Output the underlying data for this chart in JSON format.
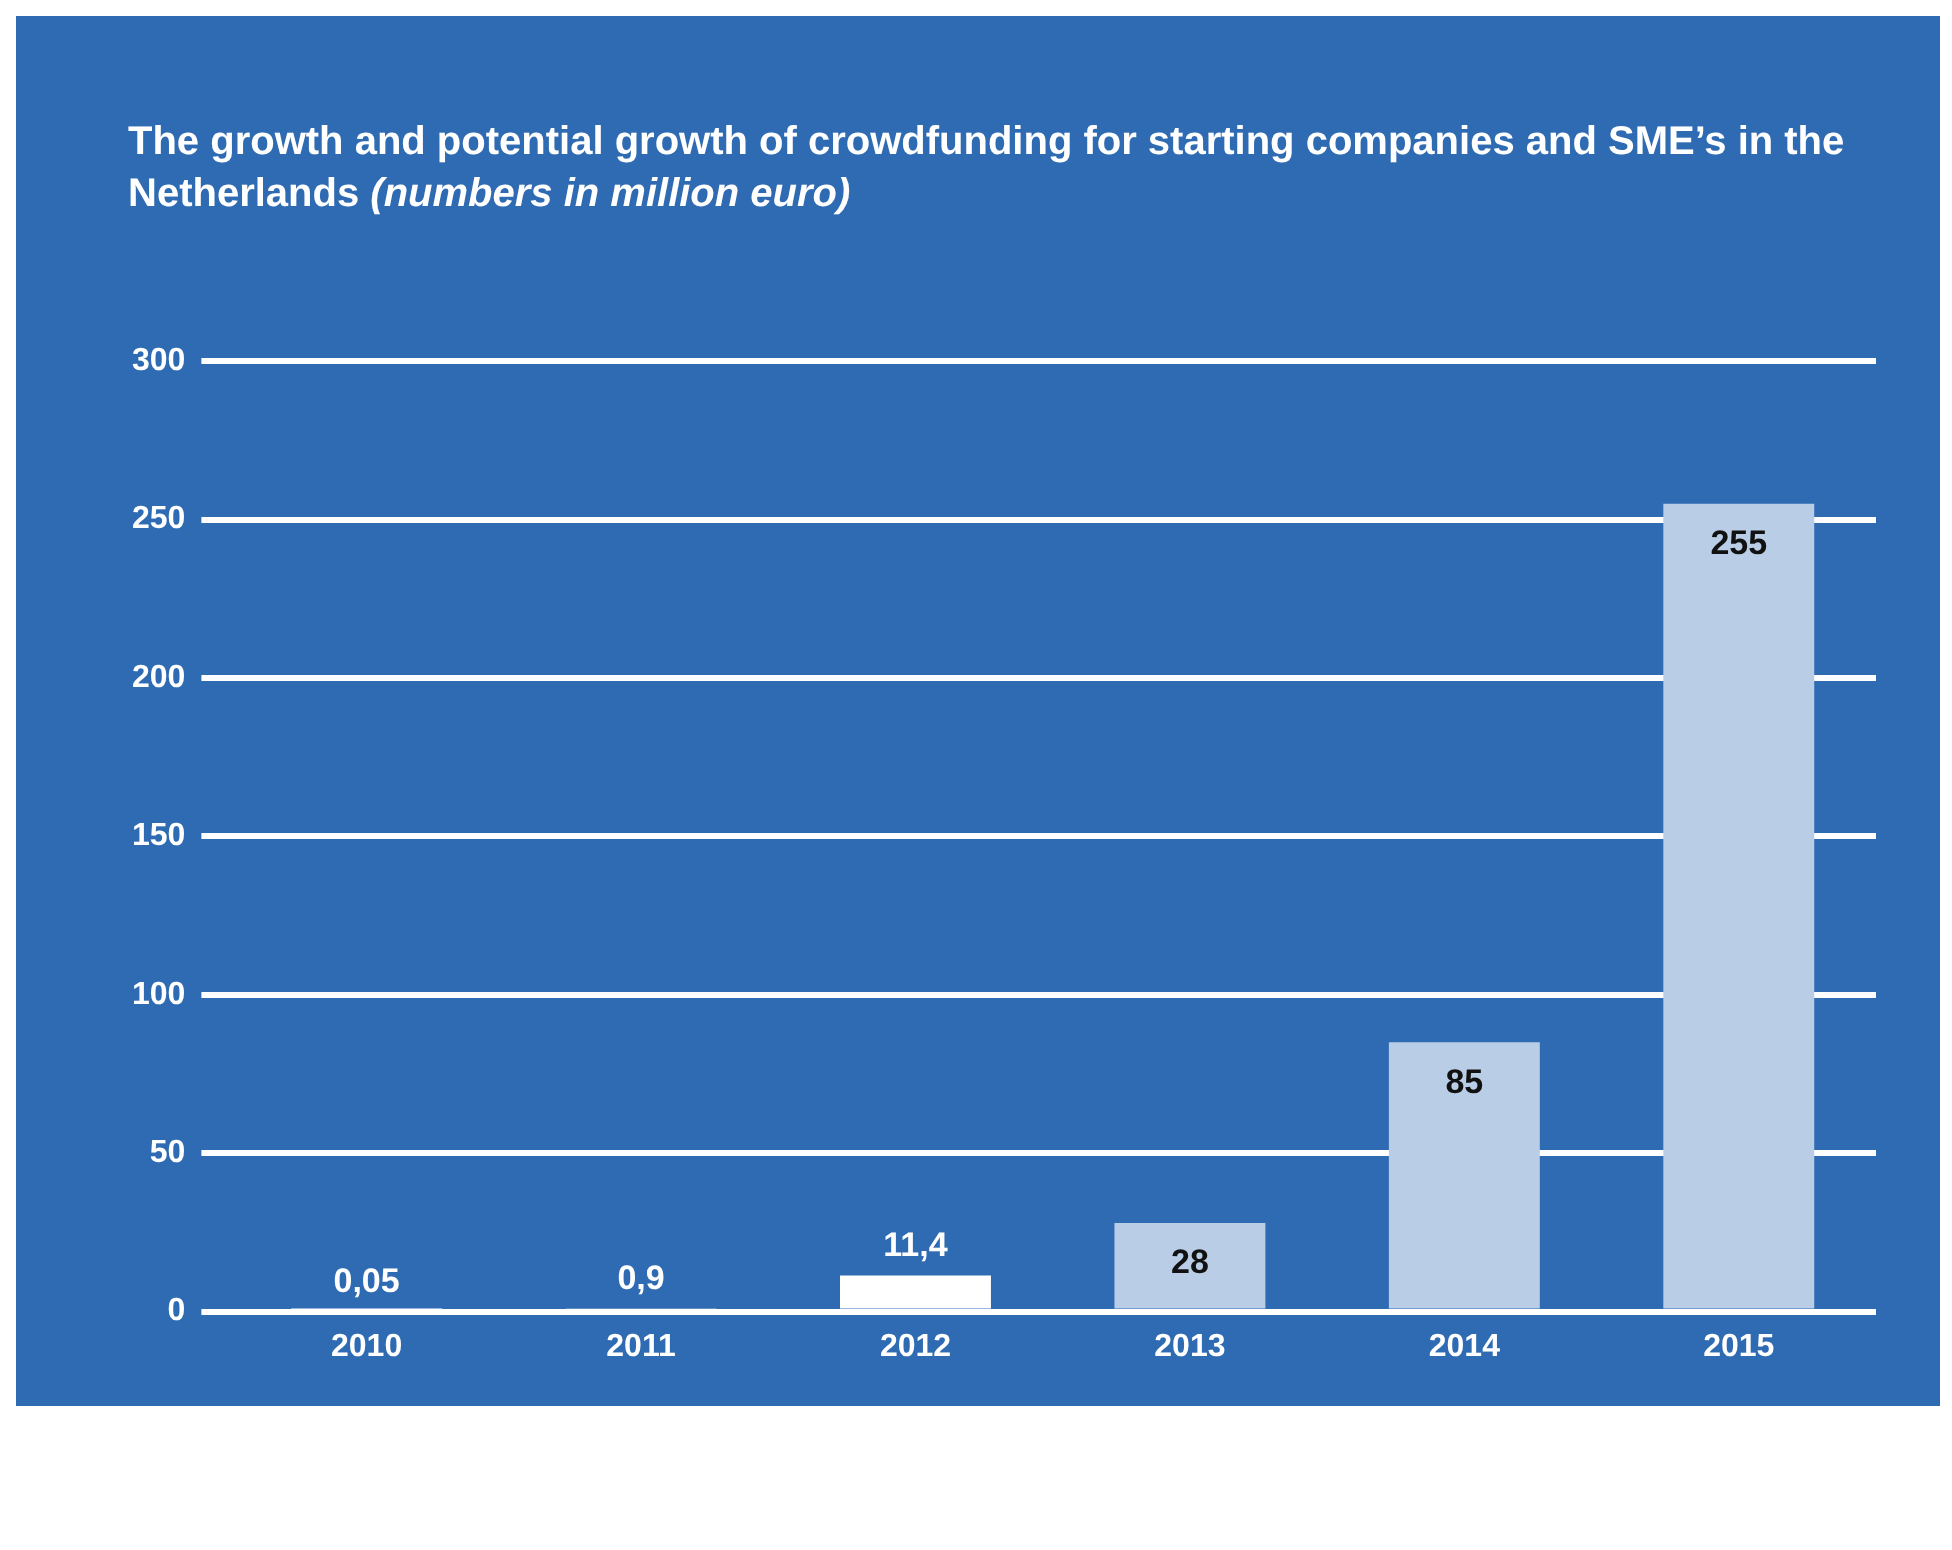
{
  "chart_data": {
    "type": "bar",
    "title": "The growth and potential growth of crowdfunding for starting companies and SME’s in the Netherlands",
    "subtitle": "(numbers in million euro)",
    "categories": [
      "2010",
      "2011",
      "2012",
      "2013",
      "2014",
      "2015"
    ],
    "values": [
      0.05,
      0.9,
      11.4,
      28,
      85,
      255
    ],
    "colors": [
      "#ffffff",
      "#ffffff",
      "#ffffff",
      "#b9cde6",
      "#b9cde6",
      "#b9cde6"
    ],
    "value_labels": [
      "0,05",
      "0,9",
      "11,4",
      "28",
      "85",
      "255"
    ],
    "ylim": [
      0,
      300
    ],
    "yticks": [
      0,
      50,
      100,
      150,
      200,
      250,
      300
    ],
    "grid": "y"
  }
}
